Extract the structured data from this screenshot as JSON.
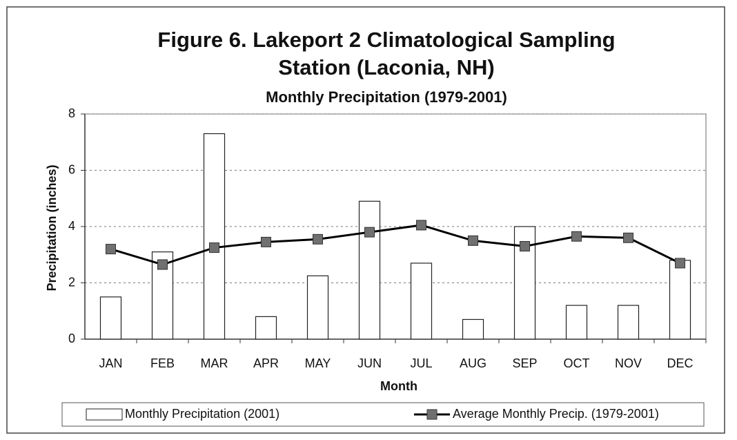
{
  "chart_data": {
    "type": "bar_line",
    "title": [
      "Figure 6. Lakeport 2 Climatological Sampling",
      "Station (Laconia, NH)"
    ],
    "subtitle": "Monthly Precipitation (1979-2001)",
    "x_label": "Month",
    "y_label": "Precipitation (inches)",
    "categories": [
      "JAN",
      "FEB",
      "MAR",
      "APR",
      "MAY",
      "JUN",
      "JUL",
      "AUG",
      "SEP",
      "OCT",
      "NOV",
      "DEC"
    ],
    "series": [
      {
        "name": "Monthly Precipitation (2001)",
        "type": "bar",
        "color": "#ffffff",
        "values": [
          1.5,
          3.1,
          7.3,
          0.8,
          2.25,
          4.9,
          2.7,
          0.7,
          4.0,
          1.2,
          1.2,
          2.8
        ]
      },
      {
        "name": "Average Monthly Precip. (1979-2001)",
        "type": "line",
        "color": "#000000",
        "marker_color": "#707070",
        "values": [
          3.2,
          2.65,
          3.25,
          3.45,
          3.55,
          3.8,
          4.05,
          3.5,
          3.3,
          3.65,
          3.6,
          2.7
        ]
      }
    ],
    "ylim": [
      0,
      8
    ],
    "yticks": [
      0,
      2,
      4,
      6,
      8
    ],
    "grid": true,
    "legend": "bottom"
  }
}
